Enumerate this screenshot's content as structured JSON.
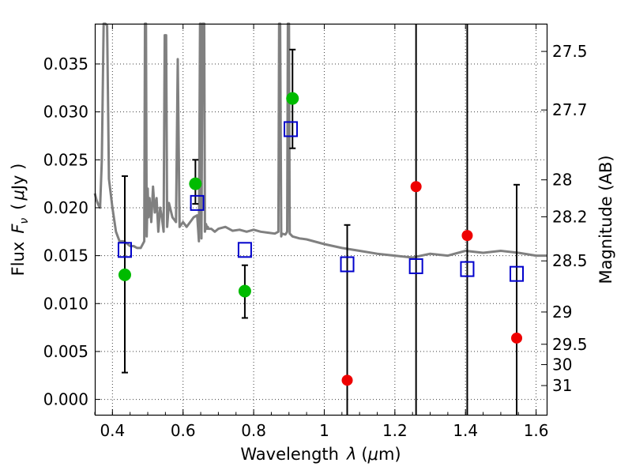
{
  "chart_data": {
    "type": "scatter",
    "xlabel_main": "Wavelength",
    "xlabel_symbol": "λ",
    "xlabel_unit_open": "(",
    "xlabel_unit_mu": "μ",
    "xlabel_unit_rest": "m)",
    "ylabel_main": "Flux",
    "ylabel_symbol": "F",
    "ylabel_subscript": "ν",
    "ylabel_unit_open": "(",
    "ylabel_unit_mu": "μ",
    "ylabel_unit_rest": "Jy )",
    "y2label": "Magnitude (AB)",
    "xlim": [
      0.35,
      1.63
    ],
    "ylim": [
      -0.0016,
      0.0392
    ],
    "grid": true,
    "x_ticks": [
      {
        "value": 0.4,
        "label": "0.4"
      },
      {
        "value": 0.6,
        "label": "0.6"
      },
      {
        "value": 0.8,
        "label": "0.8"
      },
      {
        "value": 1.0,
        "label": "1"
      },
      {
        "value": 1.2,
        "label": "1.2"
      },
      {
        "value": 1.4,
        "label": "1.4"
      },
      {
        "value": 1.6,
        "label": "1.6"
      }
    ],
    "y_ticks": [
      {
        "value": 0.0,
        "label": "0.000"
      },
      {
        "value": 0.005,
        "label": "0.005"
      },
      {
        "value": 0.01,
        "label": "0.010"
      },
      {
        "value": 0.015,
        "label": "0.015"
      },
      {
        "value": 0.02,
        "label": "0.020"
      },
      {
        "value": 0.025,
        "label": "0.025"
      },
      {
        "value": 0.03,
        "label": "0.030"
      },
      {
        "value": 0.035,
        "label": "0.035"
      }
    ],
    "y2_ticks": [
      {
        "value": 27.5,
        "label": "27.5"
      },
      {
        "value": 27.7,
        "label": "27.7"
      },
      {
        "value": 28.0,
        "label": "28"
      },
      {
        "value": 28.2,
        "label": "28.2"
      },
      {
        "value": 28.5,
        "label": "28.5"
      },
      {
        "value": 29.0,
        "label": "29"
      },
      {
        "value": 29.5,
        "label": "29.5"
      },
      {
        "value": 30.0,
        "label": "30"
      },
      {
        "value": 31.0,
        "label": "31"
      }
    ],
    "colors": {
      "observed_green": "#00bb00",
      "observed_red": "#ee0000",
      "model_box": "#0000cc",
      "model_spectrum": "#808080",
      "errorbar": "#000000"
    },
    "observed_points": [
      {
        "x": 0.435,
        "y": 0.013,
        "yerr_low": 0.0028,
        "yerr_high": 0.0233,
        "color": "green"
      },
      {
        "x": 0.635,
        "y": 0.0225,
        "yerr_low": 0.0204,
        "yerr_high": 0.025,
        "color": "green"
      },
      {
        "x": 0.775,
        "y": 0.0113,
        "yerr_low": 0.0085,
        "yerr_high": 0.014,
        "color": "green"
      },
      {
        "x": 0.91,
        "y": 0.0314,
        "yerr_low": 0.0262,
        "yerr_high": 0.0365,
        "color": "green"
      },
      {
        "x": 1.065,
        "y": 0.002,
        "yerr_low": -0.0016,
        "yerr_high": 0.0182,
        "color": "red"
      },
      {
        "x": 1.26,
        "y": 0.0222,
        "yerr_low": -0.0016,
        "yerr_high": 0.0392,
        "color": "red"
      },
      {
        "x": 1.405,
        "y": 0.0171,
        "yerr_low": -0.0016,
        "yerr_high": 0.0392,
        "color": "red"
      },
      {
        "x": 1.545,
        "y": 0.0064,
        "yerr_low": -0.0016,
        "yerr_high": 0.0224,
        "color": "red"
      }
    ],
    "model_photometry": [
      {
        "x": 0.435,
        "y": 0.0156
      },
      {
        "x": 0.64,
        "y": 0.0205
      },
      {
        "x": 0.775,
        "y": 0.0156
      },
      {
        "x": 0.905,
        "y": 0.0282
      },
      {
        "x": 1.065,
        "y": 0.0141
      },
      {
        "x": 1.26,
        "y": 0.0139
      },
      {
        "x": 1.405,
        "y": 0.0136
      },
      {
        "x": 1.545,
        "y": 0.0131
      }
    ],
    "model_spectrum": {
      "x": [
        0.35,
        0.355,
        0.36,
        0.365,
        0.37,
        0.375,
        0.38,
        0.385,
        0.39,
        0.4,
        0.41,
        0.42,
        0.43,
        0.44,
        0.45,
        0.46,
        0.47,
        0.48,
        0.49,
        0.492,
        0.495,
        0.497,
        0.5,
        0.502,
        0.505,
        0.51,
        0.515,
        0.52,
        0.525,
        0.53,
        0.535,
        0.54,
        0.545,
        0.548,
        0.552,
        0.555,
        0.56,
        0.57,
        0.58,
        0.585,
        0.59,
        0.6,
        0.61,
        0.62,
        0.63,
        0.64,
        0.645,
        0.648,
        0.65,
        0.652,
        0.655,
        0.657,
        0.66,
        0.662,
        0.665,
        0.668,
        0.67,
        0.672,
        0.68,
        0.69,
        0.7,
        0.72,
        0.74,
        0.76,
        0.78,
        0.8,
        0.82,
        0.84,
        0.86,
        0.87,
        0.872,
        0.875,
        0.878,
        0.88,
        0.89,
        0.895,
        0.897,
        0.9,
        0.902,
        0.905,
        0.91,
        0.93,
        0.95,
        1.0,
        1.05,
        1.1,
        1.15,
        1.2,
        1.25,
        1.3,
        1.35,
        1.4,
        1.45,
        1.5,
        1.55,
        1.6,
        1.63
      ],
      "y": [
        0.0215,
        0.0208,
        0.0203,
        0.02,
        0.025,
        0.0392,
        0.0392,
        0.039,
        0.023,
        0.02,
        0.0175,
        0.0165,
        0.0165,
        0.0163,
        0.016,
        0.016,
        0.0158,
        0.0158,
        0.0165,
        0.0392,
        0.0392,
        0.017,
        0.022,
        0.019,
        0.021,
        0.0185,
        0.0222,
        0.0195,
        0.021,
        0.0175,
        0.02,
        0.019,
        0.0175,
        0.038,
        0.038,
        0.018,
        0.0205,
        0.019,
        0.0185,
        0.0355,
        0.018,
        0.0185,
        0.018,
        0.0185,
        0.019,
        0.0192,
        0.0165,
        0.0392,
        0.0392,
        0.0168,
        0.0392,
        0.0392,
        0.0392,
        0.0175,
        0.0183,
        0.0178,
        0.018,
        0.0178,
        0.0178,
        0.0175,
        0.0178,
        0.018,
        0.0176,
        0.0177,
        0.0175,
        0.0177,
        0.0175,
        0.0174,
        0.0173,
        0.0175,
        0.0392,
        0.0392,
        0.017,
        0.0173,
        0.0172,
        0.0175,
        0.0392,
        0.0392,
        0.0173,
        0.0172,
        0.017,
        0.0168,
        0.0167,
        0.0162,
        0.0158,
        0.0155,
        0.0152,
        0.015,
        0.0148,
        0.0152,
        0.015,
        0.0155,
        0.0153,
        0.0155,
        0.0153,
        0.015,
        0.015
      ]
    }
  }
}
